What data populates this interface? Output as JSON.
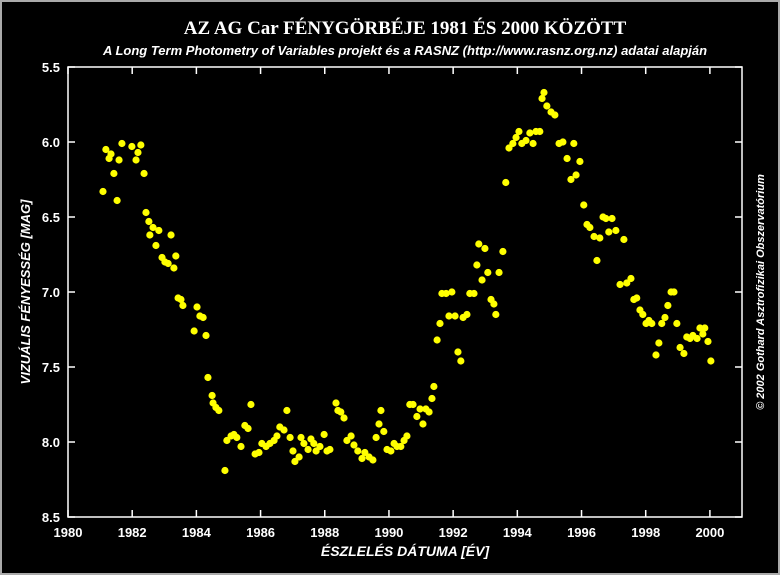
{
  "chart_data": {
    "type": "scatter",
    "title": "AZ AG Car FÉNYGÖRBÉJE 1981 ÉS 2000 KÖZÖTT",
    "subtitle": "A Long Term Photometry of Variables projekt és a RASNZ (http://www.rasnz.org.nz) adatai alapján",
    "x_label": "ÉSZLELÉS DÁTUMA [ÉV]",
    "y_label": "VIZUÁLIS FÉNYESSÉG [MAG]",
    "annotation": "© 2002 Gothard Asztrofizikai Obszervatórium",
    "color": "#ffff00",
    "y_inverted": true,
    "xlim": [
      1980,
      2001
    ],
    "ylim": [
      5.5,
      8.5
    ],
    "xticks": [
      1980,
      1982,
      1984,
      1986,
      1988,
      1990,
      1992,
      1994,
      1996,
      1998,
      2000
    ],
    "yticks": [
      5.5,
      {
        "value": 6,
        "label": "6.0"
      },
      6.5,
      {
        "value": 7,
        "label": "7.0"
      },
      7.5,
      {
        "value": 8,
        "label": "8.0"
      },
      8.5
    ],
    "x": [
      1981.09,
      1981.18,
      1981.28,
      1981.34,
      1981.43,
      1981.53,
      1981.59,
      1981.68,
      1981.99,
      1982.12,
      1982.18,
      1982.27,
      1982.37,
      1982.43,
      1982.52,
      1982.55,
      1982.65,
      1982.74,
      1982.83,
      1982.93,
      1983.02,
      1983.12,
      1983.21,
      1983.3,
      1983.36,
      1983.43,
      1983.52,
      1983.58,
      1983.93,
      1984.02,
      1984.11,
      1984.21,
      1984.3,
      1984.36,
      1984.49,
      1984.52,
      1984.61,
      1984.7,
      1984.89,
      1984.95,
      1985.08,
      1985.17,
      1985.26,
      1985.39,
      1985.51,
      1985.61,
      1985.7,
      1985.83,
      1985.95,
      1986.04,
      1986.17,
      1986.29,
      1986.42,
      1986.51,
      1986.6,
      1986.73,
      1986.82,
      1986.92,
      1987.01,
      1987.07,
      1987.2,
      1987.26,
      1987.35,
      1987.48,
      1987.57,
      1987.66,
      1987.73,
      1987.85,
      1987.98,
      1988.07,
      1988.16,
      1988.35,
      1988.41,
      1988.5,
      1988.6,
      1988.69,
      1988.82,
      1988.91,
      1989.03,
      1989.16,
      1989.25,
      1989.38,
      1989.5,
      1989.6,
      1989.69,
      1989.75,
      1989.84,
      1989.94,
      1990.06,
      1990.16,
      1990.25,
      1990.37,
      1990.47,
      1990.56,
      1990.65,
      1990.75,
      1990.87,
      1990.97,
      1991.06,
      1991.15,
      1991.25,
      1991.34,
      1991.4,
      1991.5,
      1991.59,
      1991.65,
      1991.78,
      1991.87,
      1991.96,
      1992.06,
      1992.15,
      1992.24,
      1992.31,
      1992.43,
      1992.52,
      1992.65,
      1992.74,
      1992.8,
      1992.9,
      1992.99,
      1993.08,
      1993.18,
      1993.27,
      1993.33,
      1993.43,
      1993.55,
      1993.64,
      1993.74,
      1993.86,
      1993.96,
      1994.05,
      1994.14,
      1994.27,
      1994.39,
      1994.49,
      1994.58,
      1994.7,
      1994.77,
      1994.83,
      1994.92,
      1995.05,
      1995.17,
      1995.3,
      1995.42,
      1995.55,
      1995.67,
      1995.76,
      1995.83,
      1995.95,
      1996.07,
      1996.17,
      1996.26,
      1996.39,
      1996.48,
      1996.57,
      1996.67,
      1996.76,
      1996.85,
      1996.95,
      1997.07,
      1997.2,
      1997.32,
      1997.41,
      1997.54,
      1997.63,
      1997.72,
      1997.82,
      1997.91,
      1998.01,
      1998.1,
      1998.19,
      1998.32,
      1998.41,
      1998.5,
      1998.6,
      1998.69,
      1998.79,
      1998.88,
      1998.97,
      1999.07,
      1999.19,
      1999.28,
      1999.38,
      1999.47,
      1999.6,
      1999.69,
      1999.78,
      1999.84,
      1999.94,
      2000.03
    ],
    "values": [
      6.33,
      6.05,
      6.11,
      6.08,
      6.21,
      6.39,
      6.12,
      6.01,
      6.03,
      6.12,
      6.07,
      6.02,
      6.21,
      6.47,
      6.53,
      6.62,
      6.57,
      6.69,
      6.59,
      6.77,
      6.8,
      6.81,
      6.62,
      6.84,
      6.76,
      7.04,
      7.05,
      7.09,
      7.26,
      7.1,
      7.16,
      7.17,
      7.29,
      7.57,
      7.69,
      7.74,
      7.77,
      7.79,
      8.19,
      7.99,
      7.96,
      7.95,
      7.97,
      8.03,
      7.89,
      7.91,
      7.75,
      8.08,
      8.07,
      8.01,
      8.03,
      8.01,
      7.99,
      7.96,
      7.9,
      7.92,
      7.79,
      7.97,
      8.06,
      8.13,
      8.1,
      7.97,
      8.01,
      8.05,
      7.98,
      8.01,
      8.06,
      8.03,
      7.95,
      8.06,
      8.05,
      7.74,
      7.79,
      7.8,
      7.84,
      7.99,
      7.96,
      8.02,
      8.06,
      8.11,
      8.07,
      8.1,
      8.12,
      7.97,
      7.88,
      7.79,
      7.93,
      8.05,
      8.06,
      8.01,
      8.03,
      8.03,
      7.99,
      7.96,
      7.75,
      7.75,
      7.83,
      7.78,
      7.88,
      7.78,
      7.8,
      7.71,
      7.63,
      7.32,
      7.21,
      7.01,
      7.01,
      7.16,
      7.0,
      7.16,
      7.4,
      7.46,
      7.17,
      7.15,
      7.01,
      7.01,
      6.82,
      6.68,
      6.92,
      6.71,
      6.87,
      7.05,
      7.08,
      7.15,
      6.87,
      6.73,
      6.27,
      6.04,
      6.01,
      5.97,
      5.93,
      6.01,
      5.99,
      5.94,
      6.01,
      5.93,
      5.93,
      5.71,
      5.67,
      5.76,
      5.8,
      5.82,
      6.01,
      6.0,
      6.11,
      6.25,
      6.01,
      6.22,
      6.13,
      6.42,
      6.55,
      6.57,
      6.63,
      6.79,
      6.64,
      6.5,
      6.51,
      6.6,
      6.51,
      6.59,
      6.95,
      6.65,
      6.94,
      6.91,
      7.05,
      7.04,
      7.12,
      7.15,
      7.21,
      7.19,
      7.21,
      7.42,
      7.34,
      7.21,
      7.17,
      7.09,
      7.0,
      7.0,
      7.21,
      7.37,
      7.41,
      7.3,
      7.31,
      7.29,
      7.31,
      7.24,
      7.28,
      7.24,
      7.33,
      7.46
    ]
  }
}
